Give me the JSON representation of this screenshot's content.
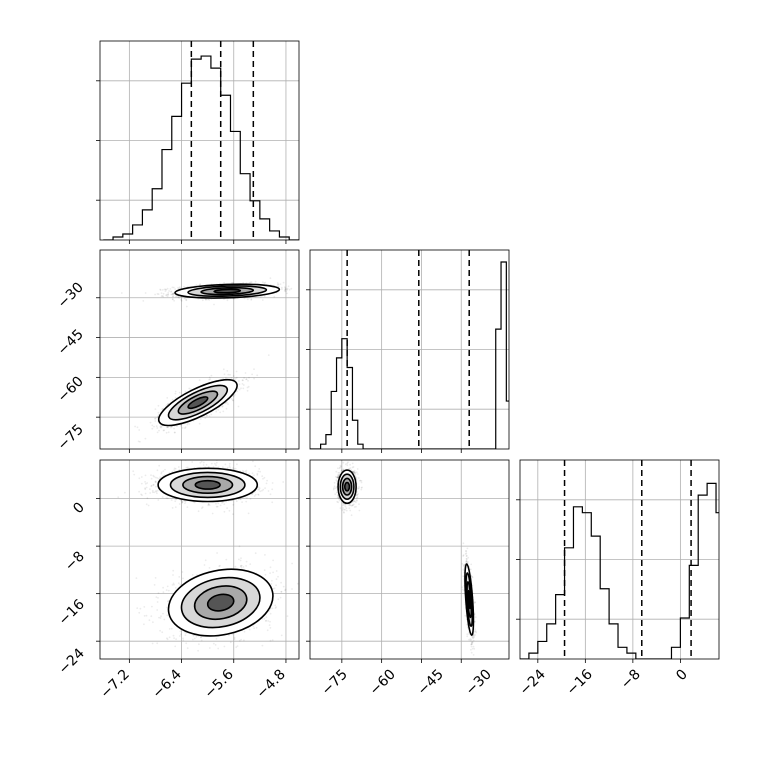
{
  "chart_data": {
    "type": "corner",
    "grid": true,
    "panels": {
      "hist_p0": {
        "type": "histogram",
        "bins": {
          "start": -7.6,
          "width": 0.15
        },
        "counts": [
          0,
          1,
          2,
          5,
          10,
          17,
          30,
          41,
          52,
          60,
          61,
          57,
          48,
          36,
          22,
          13,
          7,
          3,
          1,
          0
        ],
        "quantiles": [
          -6.25,
          -5.8,
          -5.3
        ],
        "ylim": [
          0,
          66
        ]
      },
      "hist_p1": {
        "type": "histogram",
        "bins": {
          "start": -87,
          "width": 2
        },
        "counts": [
          0,
          0,
          1,
          3,
          12,
          19,
          23,
          17,
          6,
          1,
          0,
          0,
          0,
          0,
          0,
          0,
          0,
          0,
          0,
          0,
          0,
          0,
          0,
          0,
          0,
          0,
          0,
          0,
          0,
          0,
          0,
          0,
          0,
          0,
          0,
          25,
          39,
          10
        ],
        "quantiles": [
          -73,
          -46,
          -27
        ],
        "ylim": [
          0,
          41.5
        ]
      },
      "hist_p2": {
        "type": "histogram",
        "bins": {
          "start": -27,
          "width": 1.5
        },
        "counts": [
          0,
          1,
          3,
          6,
          11,
          19,
          26,
          25,
          21,
          12,
          6,
          2,
          1,
          0,
          0,
          0,
          0,
          2,
          7,
          16,
          28,
          30,
          25,
          11,
          1
        ],
        "quantiles": [
          -19.5,
          -6.5,
          1.8
        ],
        "ylim": [
          0,
          34
        ]
      },
      "scatter_p0_p1": {
        "type": "density",
        "modes": [
          {
            "cx": -5.7,
            "cy": -27.5,
            "sx": 0.4,
            "sy": 1.3,
            "rho": 0.25,
            "n": 1400
          },
          {
            "cx": -6.15,
            "cy": -69.5,
            "sx": 0.3,
            "sy": 4.3,
            "rho": 0.75,
            "n": 1100
          }
        ]
      },
      "scatter_p0_p2": {
        "type": "density",
        "modes": [
          {
            "cx": -6.0,
            "cy": 2.3,
            "sx": 0.38,
            "sy": 1.4,
            "rho": 0.0,
            "n": 1400
          },
          {
            "cx": -5.8,
            "cy": -17.5,
            "sx": 0.4,
            "sy": 2.8,
            "rho": 0.2,
            "n": 1300
          }
        ]
      },
      "scatter_p1_p2": {
        "type": "density",
        "modes": [
          {
            "cx": -73,
            "cy": 2.0,
            "sx": 1.7,
            "sy": 1.4,
            "rho": 0.0,
            "n": 1400
          },
          {
            "cx": -27,
            "cy": -17.0,
            "sx": 0.8,
            "sy": 3.0,
            "rho": -0.6,
            "n": 1300
          }
        ]
      }
    },
    "axes": {
      "p0": {
        "range": [
          -7.65,
          -4.6
        ],
        "ticks": [
          -7.2,
          -6.4,
          -5.6,
          -4.8
        ],
        "tick_labels": [
          "−7.2",
          "−6.4",
          "−5.6",
          "−4.8"
        ]
      },
      "p1": {
        "range": [
          -87,
          -12
        ],
        "ticks": [
          -75,
          -60,
          -45,
          -30
        ],
        "tick_labels": [
          "−75",
          "−60",
          "−45",
          "−30"
        ]
      },
      "p2": {
        "range": [
          -27,
          6.5
        ],
        "ticks": [
          -24,
          -16,
          -8,
          0
        ],
        "tick_labels": [
          "−24",
          "−16",
          "−8",
          "0"
        ]
      }
    }
  }
}
